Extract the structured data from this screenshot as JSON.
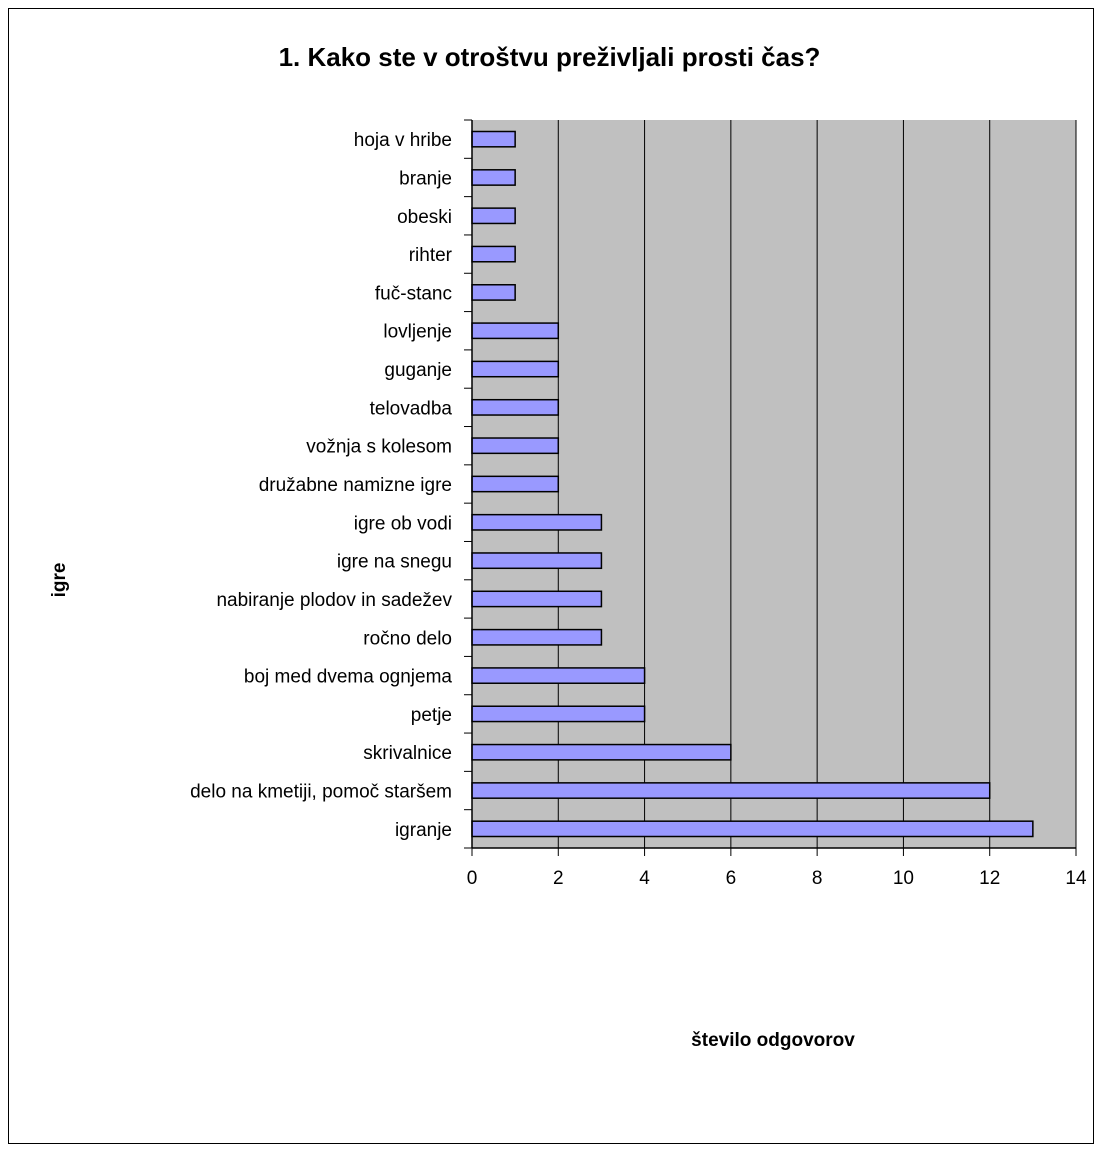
{
  "chart_data": {
    "type": "bar",
    "orientation": "horizontal",
    "title": "1. Kako ste v otroštvu preživljali prosti čas?",
    "xlabel": "število odgovorov",
    "ylabel": "igre",
    "xlim": [
      0,
      14
    ],
    "xticks": [
      "0",
      "2",
      "4",
      "6",
      "8",
      "10",
      "12",
      "14"
    ],
    "grid": true,
    "legend": "none",
    "categories": [
      "hoja v hribe",
      "branje",
      "obeski",
      "rihter",
      "fuč-stanc",
      "lovljenje",
      "guganje",
      "telovadba",
      "vožnja s kolesom",
      "družabne namizne igre",
      "igre ob vodi",
      "igre na snegu",
      "nabiranje plodov in sadežev",
      "ročno delo",
      "boj med dvema ognjema",
      "petje",
      "skrivalnice",
      "delo na kmetiji, pomoč staršem",
      "igranje"
    ],
    "values": [
      1,
      1,
      1,
      1,
      1,
      2,
      2,
      2,
      2,
      2,
      3,
      3,
      3,
      3,
      4,
      4,
      6,
      12,
      13
    ],
    "colors": {
      "bar_fill": "#9999ff",
      "plot_background": "#c0c0c0",
      "bar_stroke": "#000000"
    }
  }
}
